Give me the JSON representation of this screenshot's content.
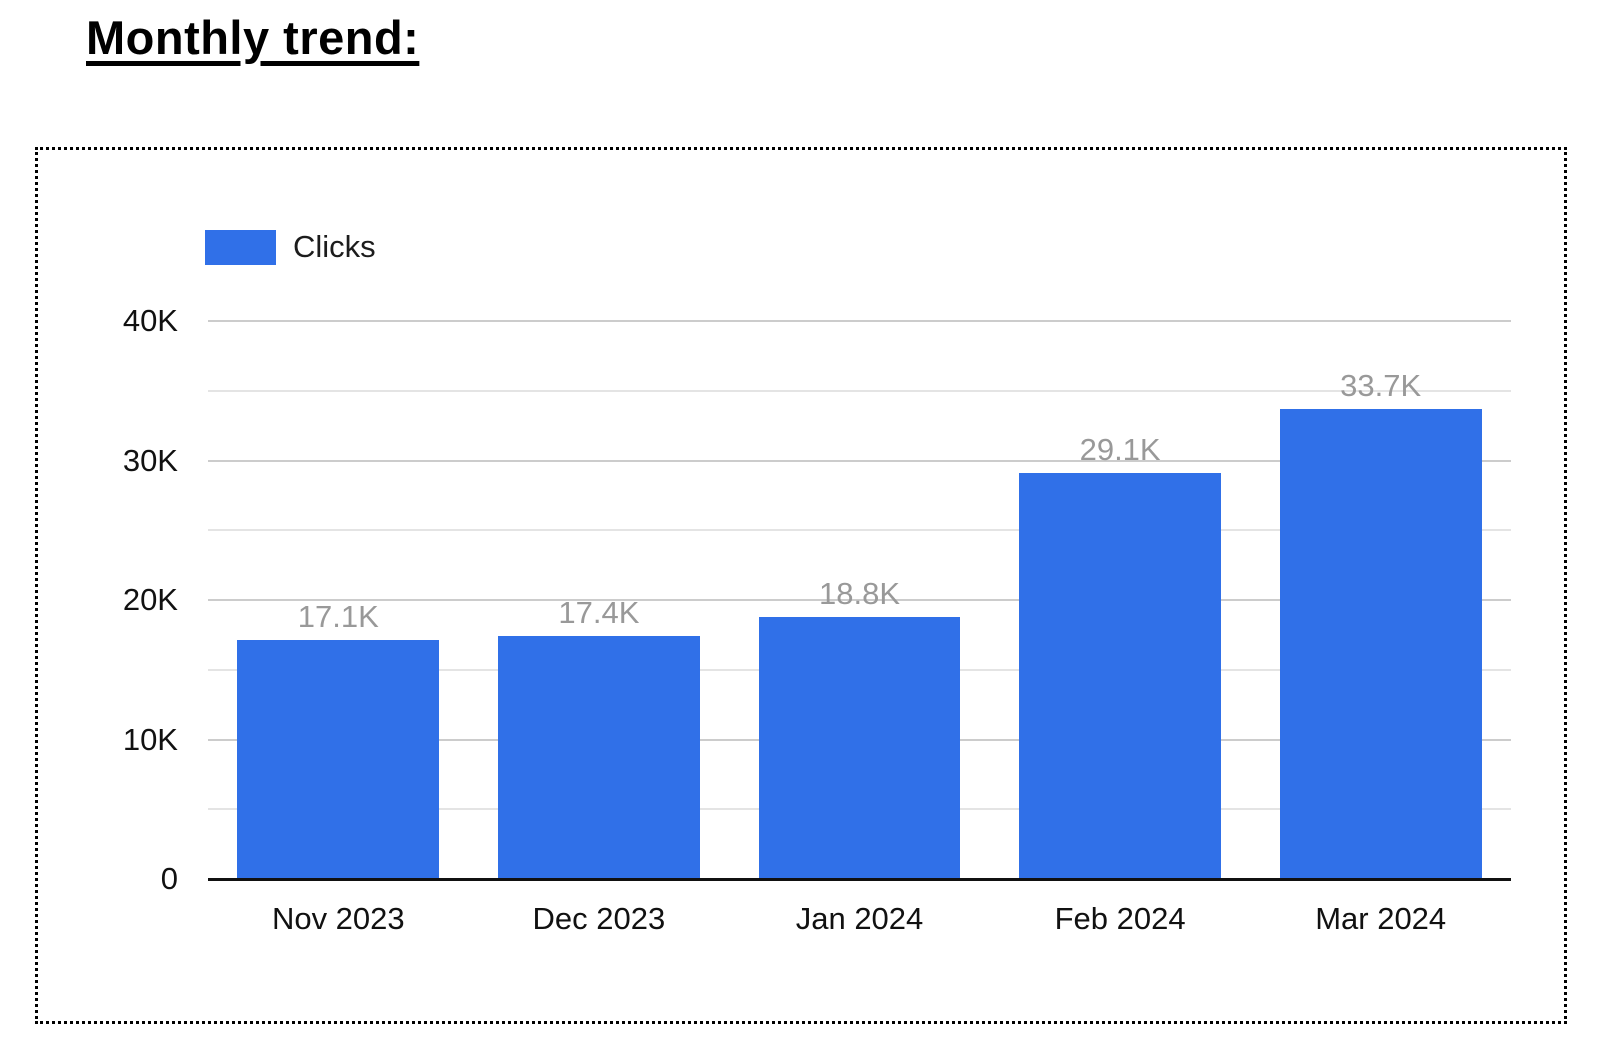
{
  "page": {
    "title": "Monthly trend:"
  },
  "legend": {
    "label": "Clicks"
  },
  "colors": {
    "bar": "#3070e8",
    "value_label": "#999999",
    "grid_major": "#cccccc",
    "grid_minor": "#e4e4e4",
    "axis_line": "#111111",
    "tick_label": "#111111"
  },
  "chart_data": {
    "type": "bar",
    "title": "Monthly trend:",
    "categories": [
      "Nov 2023",
      "Dec 2023",
      "Jan 2024",
      "Feb 2024",
      "Mar 2024"
    ],
    "series": [
      {
        "name": "Clicks",
        "values": [
          17100,
          17400,
          18800,
          29100,
          33700
        ]
      }
    ],
    "value_labels": [
      "17.1K",
      "17.4K",
      "18.8K",
      "29.1K",
      "33.7K"
    ],
    "xlabel": "",
    "ylabel": "",
    "ylim": [
      0,
      40000
    ],
    "y_major_ticks": [
      0,
      10000,
      20000,
      30000,
      40000
    ],
    "y_major_tick_labels": [
      "0",
      "10K",
      "20K",
      "30K",
      "40K"
    ],
    "y_minor_ticks": [
      5000,
      15000,
      25000,
      35000
    ],
    "grid": true,
    "legend_position": "top-left",
    "bar_band_fraction": 0.775
  }
}
